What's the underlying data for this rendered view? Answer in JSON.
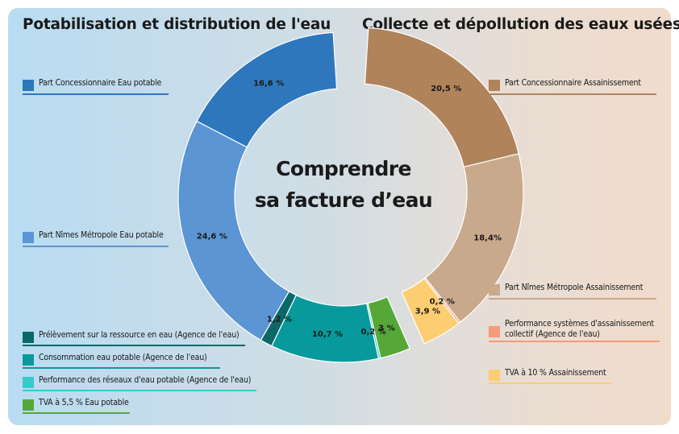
{
  "titles": {
    "left": "Potabilisation et distribution de l'eau",
    "right": "Collecte et dépollution des eaux usées"
  },
  "center": {
    "line1": "Comprendre",
    "line2": "sa facture d’eau"
  },
  "colors": {
    "concessionnaire_eau": "#2f77bd",
    "nimes_eau": "#5b95d3",
    "prelevement": "#0b6868",
    "consommation": "#08999c",
    "performance_reseaux": "#39c9cc",
    "tva_eau": "#55a837",
    "concessionnaire_assain": "#b0835b",
    "nimes_assain": "#c9a98b",
    "performance_assain": "#f59a7a",
    "tva_assain": "#fdcd72"
  },
  "legend": {
    "left": [
      "Part Concessionnaire Eau potable",
      "Part Nîmes Métropole Eau potable",
      "Prélèvement sur la ressource en eau (Agence de l'eau)",
      "Consommation eau potable (Agence de l'eau)",
      "Performance des réseaux d'eau potable (Agence de l'eau)",
      "TVA à 5,5 % Eau potable"
    ],
    "right": [
      "Part Concessionnaire Assainissement",
      "Part Nîmes Métropole Assainissement",
      "Performance systèmes d'assainissement collectif (Agence de l'eau)",
      "TVA à 10 % Assainissement"
    ]
  },
  "chart_data": {
    "type": "pie",
    "variant": "donut",
    "series": [
      {
        "name": "Part Concessionnaire Eau potable",
        "value": 16.6,
        "label": "16,6 %",
        "color": "#2f77bd",
        "group": "eau potable"
      },
      {
        "name": "Part Nîmes Métropole Eau potable",
        "value": 24.6,
        "label": "24,6 %",
        "color": "#5b95d3",
        "group": "eau potable"
      },
      {
        "name": "Prélèvement sur la ressource en eau (Agence de l'eau)",
        "value": 1.2,
        "label": "1,2 %",
        "color": "#0b6868",
        "group": "eau potable"
      },
      {
        "name": "Consommation eau potable (Agence de l'eau)",
        "value": 10.7,
        "label": "10,7 %",
        "color": "#08999c",
        "group": "eau potable"
      },
      {
        "name": "Performance des réseaux d'eau potable (Agence de l'eau)",
        "value": 0.2,
        "label": "0,2 %",
        "color": "#39c9cc",
        "group": "eau potable"
      },
      {
        "name": "TVA à 5,5 % Eau potable",
        "value": 3,
        "label": "3 %",
        "color": "#55a837",
        "group": "eau potable"
      },
      {
        "name": "Part Concessionnaire Assainissement",
        "value": 20.5,
        "label": "20,5 %",
        "color": "#b0835b",
        "group": "assainissement"
      },
      {
        "name": "Part Nîmes Métropole Assainissement",
        "value": 18.4,
        "label": "18,4%",
        "color": "#c9a98b",
        "group": "assainissement"
      },
      {
        "name": "Performance systèmes d'assainissement collectif (Agence de l'eau)",
        "value": 0.2,
        "label": "0,2 %",
        "color": "#f59a7a",
        "group": "assainissement"
      },
      {
        "name": "TVA à 10 % Assainissement",
        "value": 3.9,
        "label": "3,9 %",
        "color": "#fdcd72",
        "group": "assainissement"
      }
    ],
    "total_percent": 100,
    "legend_position": "left and right"
  }
}
